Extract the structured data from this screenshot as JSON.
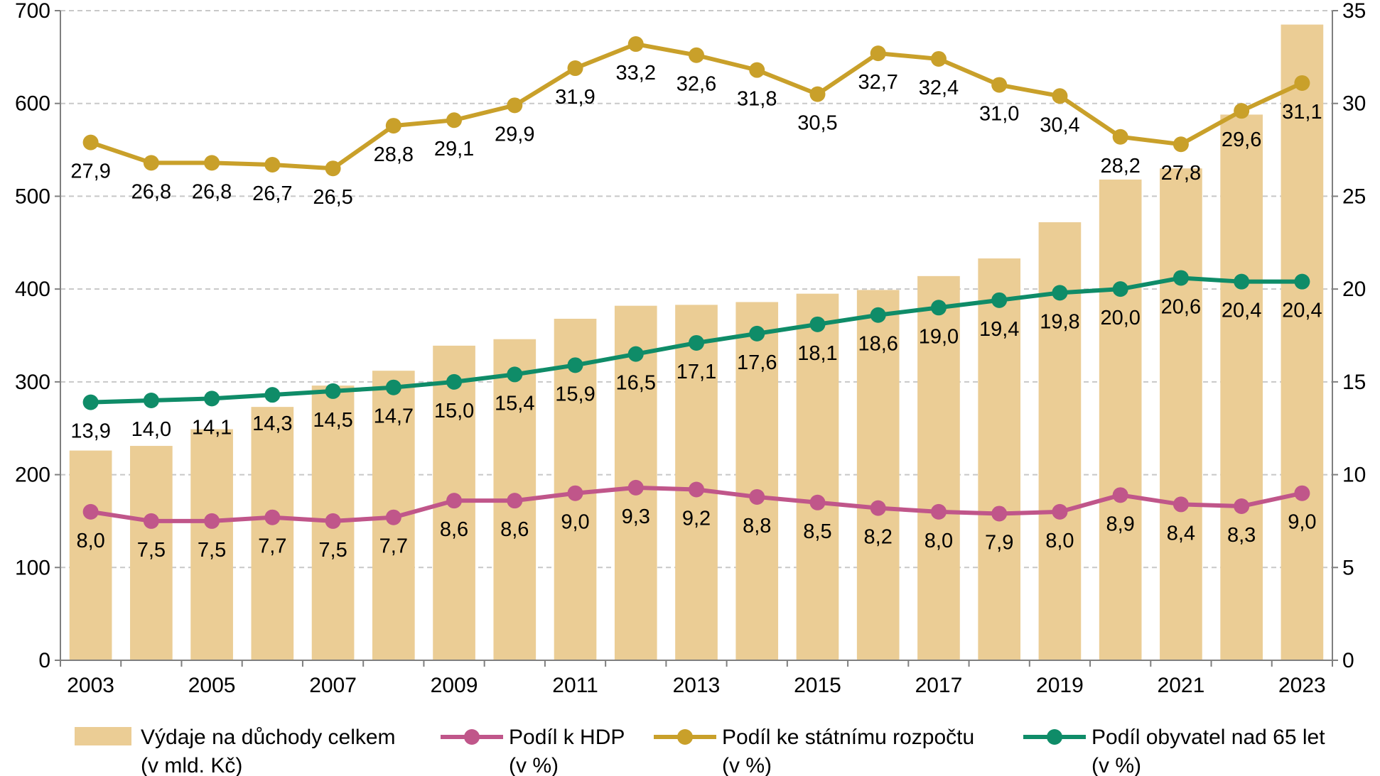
{
  "chart_data": {
    "type": "bar+line",
    "x": [
      2003,
      2004,
      2005,
      2006,
      2007,
      2008,
      2009,
      2010,
      2011,
      2012,
      2013,
      2014,
      2015,
      2016,
      2017,
      2018,
      2019,
      2020,
      2021,
      2022,
      2023
    ],
    "x_tick_labels": [
      "2003",
      "2005",
      "2007",
      "2009",
      "2011",
      "2013",
      "2015",
      "2017",
      "2019",
      "2021",
      "2023"
    ],
    "y_left": {
      "range": [
        0,
        700
      ],
      "ticks": [
        "0",
        "100",
        "200",
        "300",
        "400",
        "500",
        "600",
        "700"
      ]
    },
    "y_right": {
      "range": [
        0,
        35
      ],
      "ticks": [
        "0",
        "5",
        "10",
        "15",
        "20",
        "25",
        "30",
        "35"
      ]
    },
    "grid": "horizontal-dashed",
    "legend_position": "bottom",
    "bars": {
      "name": "Výdaje na důchody celkem",
      "name_unit": "(v mld. Kč)",
      "axis": "left",
      "color": "#ebcd95",
      "values": [
        226,
        231,
        249,
        273,
        296,
        312,
        339,
        346,
        368,
        382,
        383,
        386,
        395,
        399,
        414,
        433,
        472,
        518,
        530,
        588,
        685
      ]
    },
    "series": [
      {
        "name": "Podíl k HDP",
        "name_unit": "(v %)",
        "axis": "right",
        "color": "#c0568a",
        "values": [
          8.0,
          7.5,
          7.5,
          7.7,
          7.5,
          7.7,
          8.6,
          8.6,
          9.0,
          9.3,
          9.2,
          8.8,
          8.5,
          8.2,
          8.0,
          7.9,
          8.0,
          8.9,
          8.4,
          8.3,
          9.0
        ],
        "labels": [
          "8,0",
          "7,5",
          "7,5",
          "7,7",
          "7,5",
          "7,7",
          "8,6",
          "8,6",
          "9,0",
          "9,3",
          "9,2",
          "8,8",
          "8,5",
          "8,2",
          "8,0",
          "7,9",
          "8,0",
          "8,9",
          "8,4",
          "8,3",
          "9,0"
        ]
      },
      {
        "name": "Podíl ke státnímu rozpočtu",
        "name_unit": "(v %)",
        "axis": "right",
        "color": "#c9a02a",
        "values": [
          27.9,
          26.8,
          26.8,
          26.7,
          26.5,
          28.8,
          29.1,
          29.9,
          31.9,
          33.2,
          32.6,
          31.8,
          30.5,
          32.7,
          32.4,
          31.0,
          30.4,
          28.2,
          27.8,
          29.6,
          31.1
        ],
        "labels": [
          "27,9",
          "26,8",
          "26,8",
          "26,7",
          "26,5",
          "28,8",
          "29,1",
          "29,9",
          "31,9",
          "33,2",
          "32,6",
          "31,8",
          "30,5",
          "32,7",
          "32,4",
          "31,0",
          "30,4",
          "28,2",
          "27,8",
          "29,6",
          "31,1"
        ]
      },
      {
        "name": "Podíl obyvatel nad 65 let",
        "name_unit": "(v %)",
        "axis": "right",
        "color": "#0f8c68",
        "values": [
          13.9,
          14.0,
          14.1,
          14.3,
          14.5,
          14.7,
          15.0,
          15.4,
          15.9,
          16.5,
          17.1,
          17.6,
          18.1,
          18.6,
          19.0,
          19.4,
          19.8,
          20.0,
          20.6,
          20.4,
          20.4
        ],
        "labels": [
          "13,9",
          "14,0",
          "14,1",
          "14,3",
          "14,5",
          "14,7",
          "15,0",
          "15,4",
          "15,9",
          "16,5",
          "17,1",
          "17,6",
          "18,1",
          "18,6",
          "19,0",
          "19,4",
          "19,8",
          "20,0",
          "20,6",
          "20,4",
          "20,4"
        ]
      }
    ]
  }
}
